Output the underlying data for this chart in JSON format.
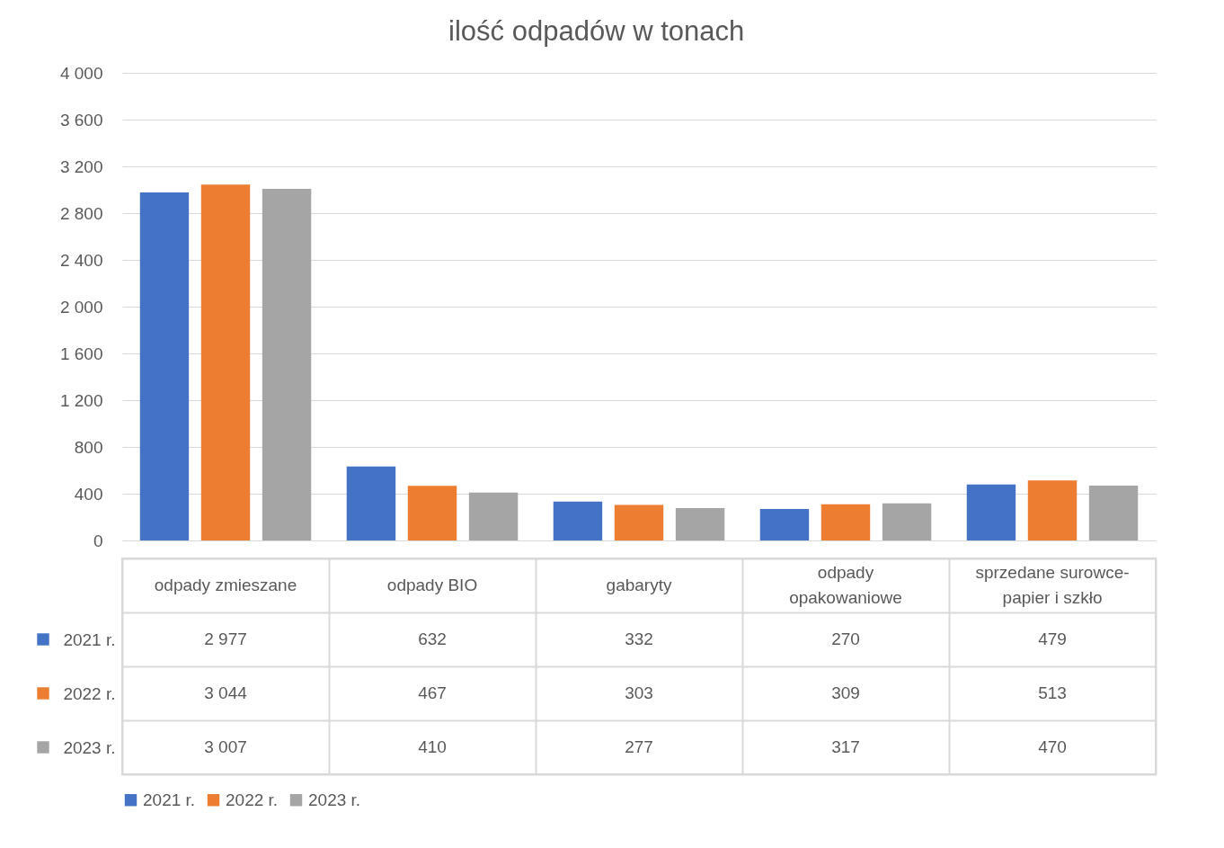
{
  "chart_data": {
    "type": "bar",
    "title": "ilość odpadów w tonach",
    "categories": [
      "odpady zmieszane",
      "odpady BIO",
      "gabaryty",
      "odpady opakowaniowe",
      "sprzedane surowce-papier i szkło"
    ],
    "series": [
      {
        "name": "2021 r.",
        "color": "#4472c4",
        "values": [
          2977,
          632,
          332,
          270,
          479
        ],
        "value_labels": [
          "2 977",
          "632",
          "332",
          "270",
          "479"
        ]
      },
      {
        "name": "2022 r.",
        "color": "#ed7d31",
        "values": [
          3044,
          467,
          303,
          309,
          513
        ],
        "value_labels": [
          "3 044",
          "467",
          "303",
          "309",
          "513"
        ]
      },
      {
        "name": "2023 r.",
        "color": "#a5a5a5",
        "values": [
          3007,
          410,
          277,
          317,
          470
        ],
        "value_labels": [
          "3 007",
          "410",
          "277",
          "317",
          "470"
        ]
      }
    ],
    "ylim": [
      0,
      4000
    ],
    "yticks": [
      0,
      400,
      800,
      {
        "value": 1200,
        "label": "1 200"
      },
      {
        "value": 1600,
        "label": "1 600"
      },
      {
        "value": 2000,
        "label": "2 000"
      },
      {
        "value": 2400,
        "label": "2 400"
      },
      {
        "value": 2800,
        "label": "2 800"
      },
      {
        "value": 3200,
        "label": "3 200"
      },
      {
        "value": 3600,
        "label": "3 600"
      },
      {
        "value": 4000,
        "label": "4 000"
      }
    ],
    "grid": "y",
    "legend": "bottom"
  }
}
